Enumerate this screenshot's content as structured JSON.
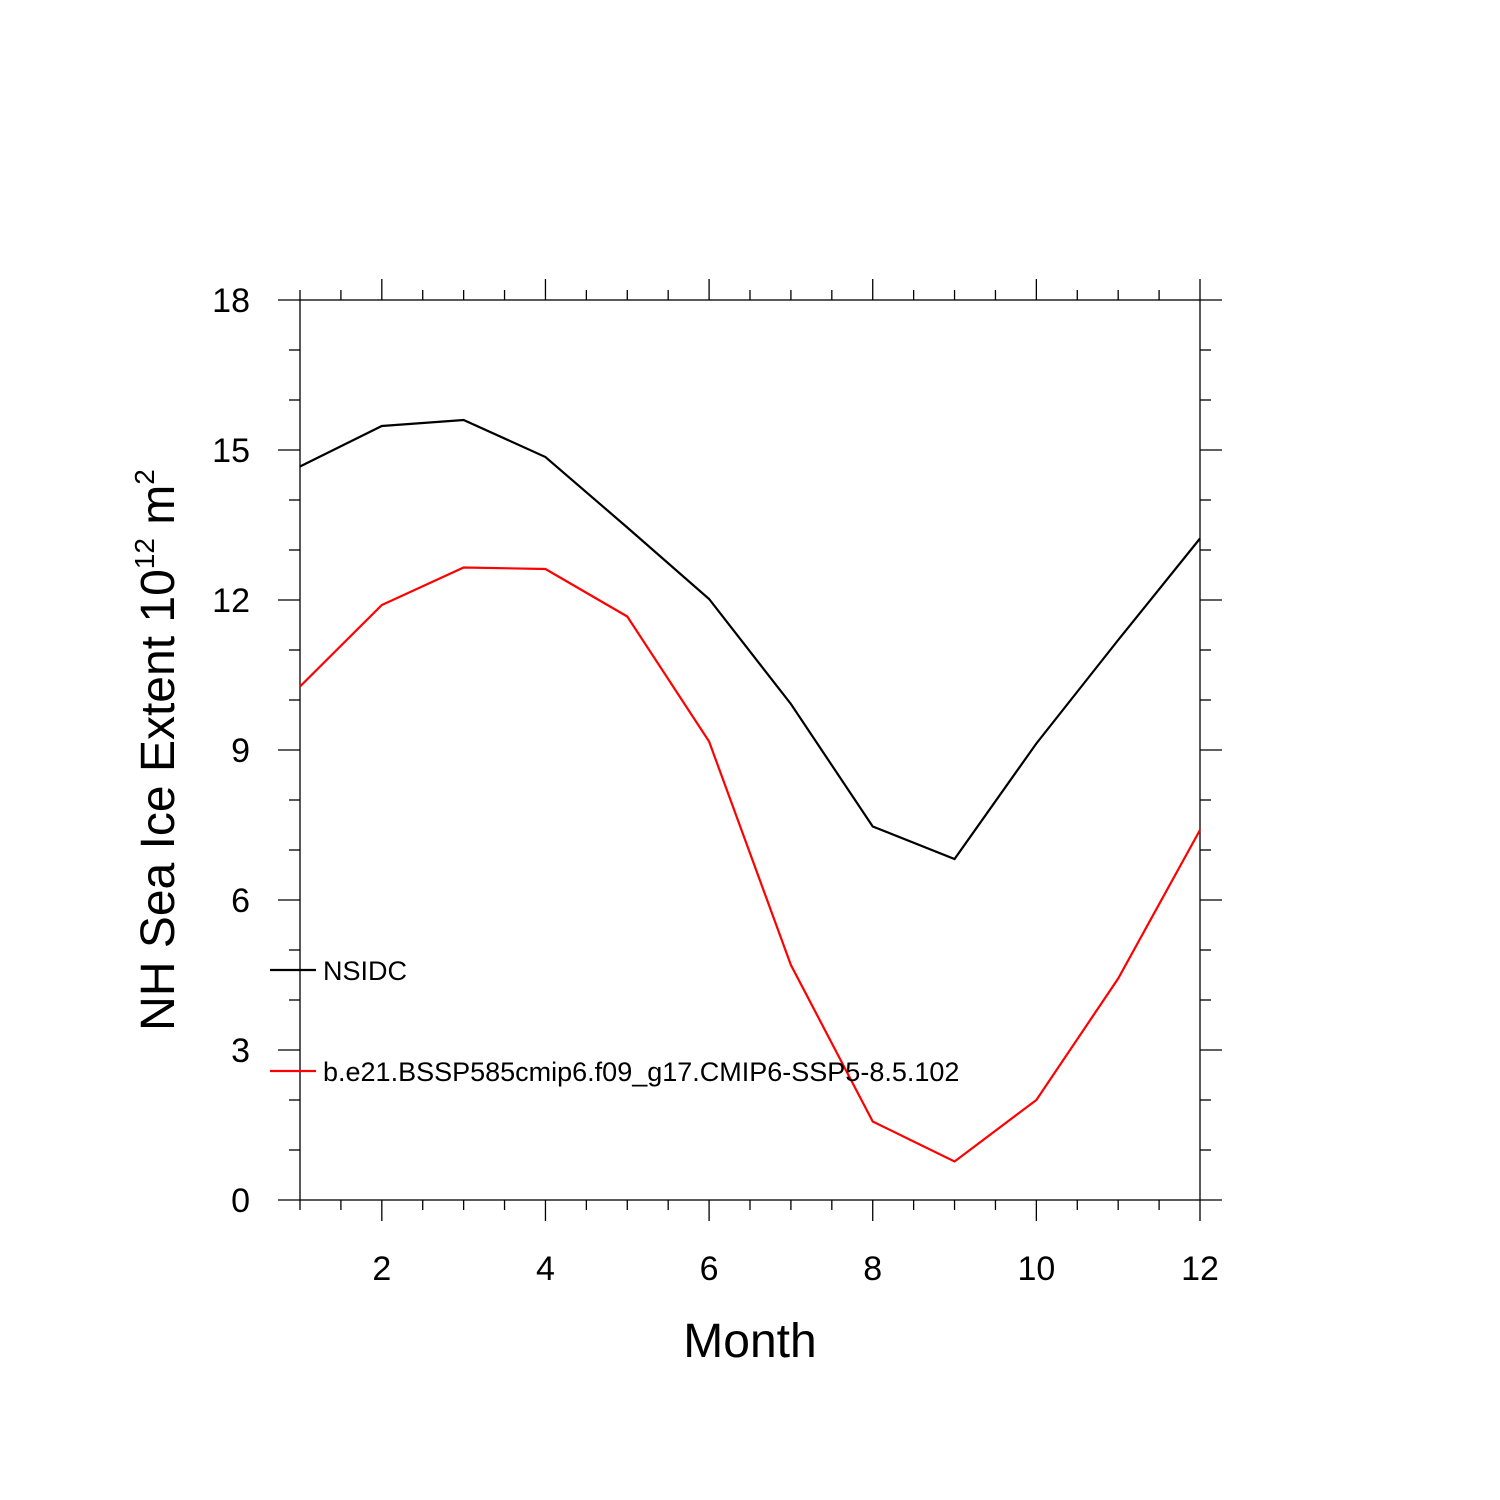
{
  "chart_data": {
    "type": "line",
    "title": "",
    "xlabel": "Month",
    "ylabel": {
      "prefix": "NH Sea Ice Extent 10",
      "exponent": "12",
      "unit": " m",
      "unit_exponent": "2"
    },
    "xlim": [
      1,
      12
    ],
    "ylim": [
      0,
      18
    ],
    "x_ticks": [
      2,
      4,
      6,
      8,
      10,
      12
    ],
    "y_ticks": [
      0,
      3,
      6,
      9,
      12,
      15,
      18
    ],
    "grid": false,
    "legend_position": "lower-left",
    "x": [
      1,
      2,
      3,
      4,
      5,
      6,
      7,
      8,
      9,
      10,
      11,
      12
    ],
    "series": [
      {
        "name": "NSIDC",
        "color": "#000000",
        "values": [
          14.67,
          15.48,
          15.6,
          14.86,
          13.45,
          12.02,
          9.92,
          7.47,
          6.82,
          9.13,
          11.2,
          13.23
        ]
      },
      {
        "name": "b.e21.BSSP585cmip6.f09_g17.CMIP6-SSP5-8.5.102",
        "color": "#ff0000",
        "values": [
          10.27,
          11.9,
          12.65,
          12.62,
          11.67,
          9.17,
          4.7,
          1.57,
          0.77,
          2.0,
          4.43,
          7.4
        ]
      }
    ]
  }
}
